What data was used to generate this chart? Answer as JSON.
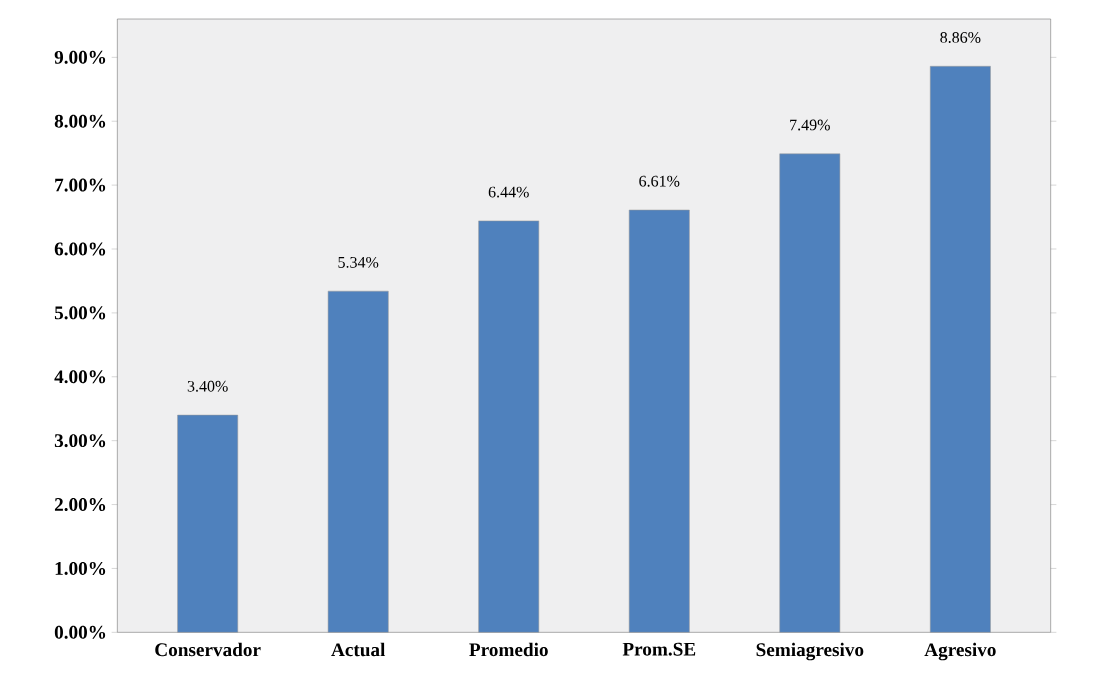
{
  "chart_data": {
    "type": "bar",
    "categories": [
      "Conservador",
      "Actual",
      "Promedio",
      "Prom.SE",
      "Semiagresivo",
      "Agresivo"
    ],
    "values": [
      3.4,
      5.34,
      6.44,
      6.61,
      7.49,
      8.86
    ],
    "value_labels": [
      "3.40%",
      "5.34%",
      "6.44%",
      "6.61%",
      "7.49%",
      "8.86%"
    ],
    "color": "#4f81bd",
    "ylim": [
      0,
      9.6
    ],
    "yticks": [
      {
        "value": 0,
        "label": "0.00%"
      },
      {
        "value": 1,
        "label": "1.00%"
      },
      {
        "value": 2,
        "label": "2.00%"
      },
      {
        "value": 3,
        "label": "3.00%"
      },
      {
        "value": 4,
        "label": "4.00%"
      },
      {
        "value": 5,
        "label": "5.00%"
      },
      {
        "value": 6,
        "label": "6.00%"
      },
      {
        "value": 7,
        "label": "7.00%"
      },
      {
        "value": 8,
        "label": "8.00%"
      },
      {
        "value": 9,
        "label": "9.00%"
      }
    ]
  }
}
